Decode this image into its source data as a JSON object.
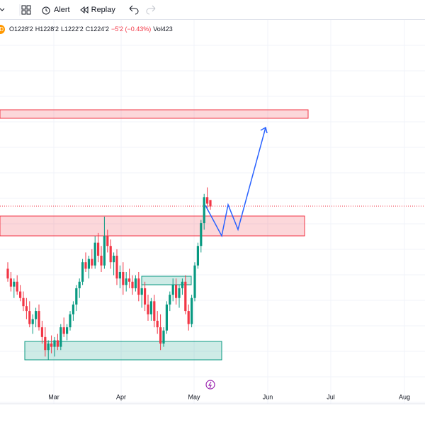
{
  "toolbar": {
    "alert": "Alert",
    "replay": "Replay"
  },
  "legend": {
    "badge": "D",
    "open": "O1228'2",
    "high": "H1228'2",
    "low": "L1222'2",
    "close": "C1224'2",
    "change": "−5'2 (−0.43%)",
    "volume": "Vol423"
  },
  "chart": {
    "type": "candlestick",
    "ylim": [
      1103,
      1339
    ],
    "x_labels": [
      "Mar",
      "Apr",
      "May",
      "Jun",
      "Jul",
      "Aug"
    ],
    "candles": [
      [
        1186,
        1190,
        1178,
        1180
      ],
      [
        1180,
        1184,
        1172,
        1175
      ],
      [
        1175,
        1180,
        1168,
        1178
      ],
      [
        1178,
        1182,
        1170,
        1172
      ],
      [
        1172,
        1176,
        1166,
        1168
      ],
      [
        1168,
        1172,
        1160,
        1163
      ],
      [
        1163,
        1168,
        1155,
        1160
      ],
      [
        1160,
        1166,
        1150,
        1152
      ],
      [
        1152,
        1158,
        1146,
        1155
      ],
      [
        1155,
        1162,
        1150,
        1160
      ],
      [
        1160,
        1164,
        1148,
        1150
      ],
      [
        1150,
        1154,
        1140,
        1144
      ],
      [
        1144,
        1150,
        1132,
        1136
      ],
      [
        1136,
        1142,
        1130,
        1140
      ],
      [
        1140,
        1145,
        1134,
        1138
      ],
      [
        1138,
        1144,
        1132,
        1142
      ],
      [
        1142,
        1146,
        1136,
        1138
      ],
      [
        1138,
        1152,
        1136,
        1150
      ],
      [
        1150,
        1156,
        1144,
        1146
      ],
      [
        1146,
        1152,
        1142,
        1150
      ],
      [
        1150,
        1160,
        1148,
        1158
      ],
      [
        1158,
        1166,
        1154,
        1164
      ],
      [
        1164,
        1176,
        1160,
        1174
      ],
      [
        1174,
        1180,
        1168,
        1178
      ],
      [
        1178,
        1192,
        1176,
        1190
      ],
      [
        1190,
        1196,
        1184,
        1186
      ],
      [
        1186,
        1194,
        1180,
        1192
      ],
      [
        1192,
        1198,
        1186,
        1188
      ],
      [
        1188,
        1206,
        1186,
        1202
      ],
      [
        1202,
        1208,
        1190,
        1194
      ],
      [
        1194,
        1200,
        1184,
        1188
      ],
      [
        1188,
        1218,
        1186,
        1206
      ],
      [
        1206,
        1210,
        1196,
        1200
      ],
      [
        1200,
        1204,
        1186,
        1190
      ],
      [
        1190,
        1196,
        1182,
        1194
      ],
      [
        1194,
        1198,
        1176,
        1180
      ],
      [
        1180,
        1188,
        1174,
        1184
      ],
      [
        1184,
        1190,
        1170,
        1176
      ],
      [
        1176,
        1184,
        1172,
        1180
      ],
      [
        1180,
        1186,
        1174,
        1178
      ],
      [
        1178,
        1182,
        1170,
        1174
      ],
      [
        1174,
        1182,
        1172,
        1180
      ],
      [
        1180,
        1184,
        1166,
        1170
      ],
      [
        1170,
        1176,
        1162,
        1174
      ],
      [
        1174,
        1178,
        1160,
        1164
      ],
      [
        1164,
        1170,
        1154,
        1158
      ],
      [
        1158,
        1168,
        1154,
        1166
      ],
      [
        1166,
        1170,
        1150,
        1154
      ],
      [
        1154,
        1160,
        1146,
        1150
      ],
      [
        1150,
        1158,
        1136,
        1140
      ],
      [
        1140,
        1150,
        1138,
        1148
      ],
      [
        1148,
        1166,
        1146,
        1164
      ],
      [
        1164,
        1172,
        1160,
        1170
      ],
      [
        1170,
        1180,
        1166,
        1176
      ],
      [
        1176,
        1180,
        1164,
        1168
      ],
      [
        1168,
        1176,
        1162,
        1174
      ],
      [
        1174,
        1180,
        1170,
        1178
      ],
      [
        1178,
        1182,
        1158,
        1160
      ],
      [
        1160,
        1164,
        1148,
        1152
      ],
      [
        1152,
        1170,
        1150,
        1168
      ],
      [
        1168,
        1190,
        1166,
        1188
      ],
      [
        1188,
        1202,
        1186,
        1200
      ],
      [
        1200,
        1216,
        1196,
        1214
      ],
      [
        1214,
        1232,
        1210,
        1230
      ],
      [
        1230,
        1236,
        1222,
        1226
      ],
      [
        1228.25,
        1228.25,
        1222.25,
        1224.25
      ]
    ]
  }
}
